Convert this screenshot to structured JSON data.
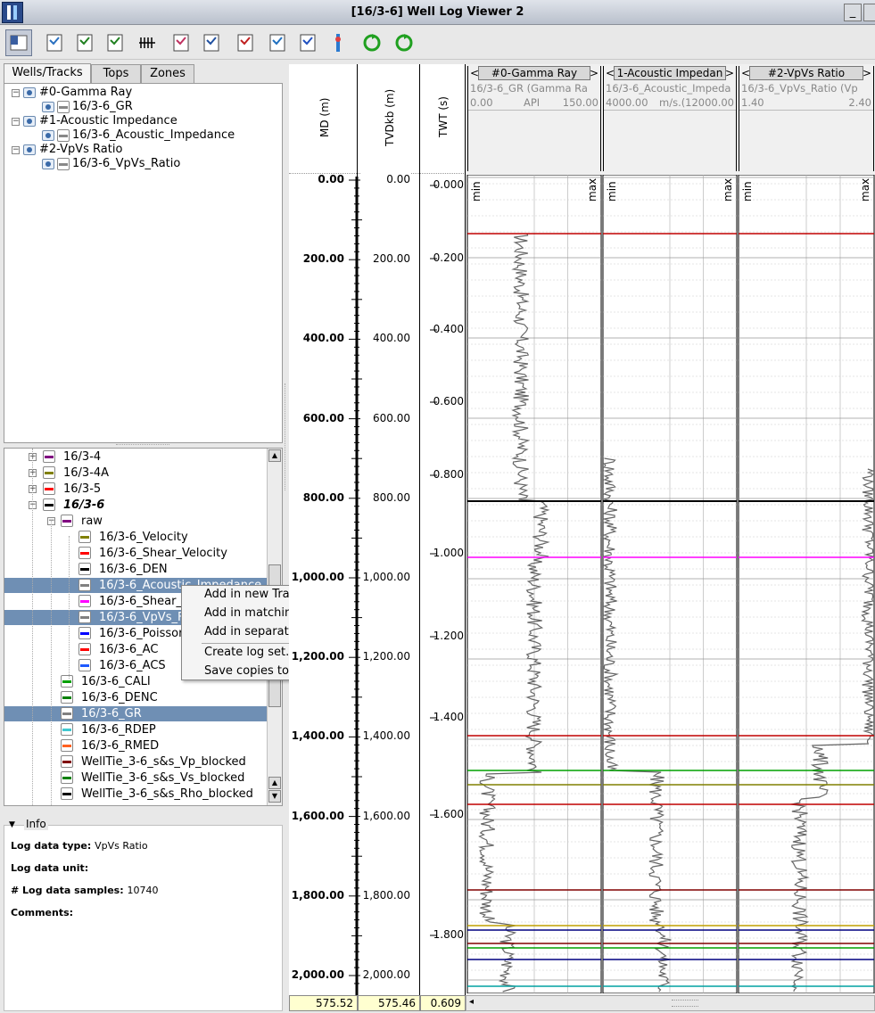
{
  "window": {
    "title": "[16/3-6] Well Log Viewer 2",
    "minimize": "_",
    "restore": "□"
  },
  "toolbar": {
    "icons": [
      "select-mode-icon",
      "new-track-icon",
      "check-log-icon",
      "check-all-icon",
      "depth-scale-icon",
      "track-layout-icon",
      "zone-marker-icon",
      "log-editor-icon",
      "crossplot-icon",
      "multi-track-icon",
      "well-tie-icon",
      "refresh-icon",
      "sync-icon"
    ]
  },
  "tabs": [
    "Wells/Tracks",
    "Tops",
    "Zones"
  ],
  "tracks_tree": [
    {
      "label": "#0-Gamma Ray",
      "child": "16/3-6_GR"
    },
    {
      "label": "#1-Acoustic Impedance",
      "child": "16/3-6_Acoustic_Impedance"
    },
    {
      "label": "#2-VpVs Ratio",
      "child": "16/3-6_VpVs_Ratio"
    }
  ],
  "log_tree": {
    "wells": [
      {
        "label": "16/3-4",
        "color": "#800080"
      },
      {
        "label": "16/3-4A",
        "color": "#808000"
      },
      {
        "label": "16/3-5",
        "color": "#ff0000"
      },
      {
        "label": "16/3-6",
        "color": "#000000"
      }
    ],
    "raw_label": "raw",
    "raw_color": "#800080",
    "raw_logs": [
      {
        "label": "16/3-6_Velocity",
        "color": "#808000"
      },
      {
        "label": "16/3-6_Shear_Velocity",
        "color": "#ff0000"
      },
      {
        "label": "16/3-6_DEN",
        "color": "#000000"
      },
      {
        "label": "16/3-6_Acoustic_Impedance",
        "color": "#808080"
      },
      {
        "label": "16/3-6_Shear_",
        "color": "#ff00ff"
      },
      {
        "label": "16/3-6_VpVs_F",
        "color": "#808080"
      },
      {
        "label": "16/3-6_Poissor",
        "color": "#0000ff"
      },
      {
        "label": "16/3-6_AC",
        "color": "#ff0000"
      },
      {
        "label": "16/3-6_ACS",
        "color": "#1e5aff"
      }
    ],
    "other_logs": [
      {
        "label": "16/3-6_CALI",
        "color": "#00a000"
      },
      {
        "label": "16/3-6_DENC",
        "color": "#008000"
      },
      {
        "label": "16/3-6_GR",
        "color": "#808080"
      },
      {
        "label": "16/3-6_RDEP",
        "color": "#40c8d0"
      },
      {
        "label": "16/3-6_RMED",
        "color": "#ff6020"
      },
      {
        "label": "WellTie_3-6_s&s_Vp_blocked",
        "color": "#800000"
      },
      {
        "label": "WellTie_3-6_s&s_Vs_blocked",
        "color": "#008000"
      },
      {
        "label": "WellTie_3-6_s&s_Rho_blocked",
        "color": "#000000"
      }
    ]
  },
  "context_menu": [
    "Add in new Track",
    "Add in matching Tracks",
    "Add in separate Tracks",
    "Create log set...",
    "Save copies to project..."
  ],
  "info": {
    "title": "Info",
    "type_label": "Log data type:",
    "type_value": "VpVs Ratio",
    "unit_label": "Log data unit:",
    "unit_value": "",
    "samples_label": "# Log data samples:",
    "samples_value": "10740",
    "comments_label": "Comments:",
    "comments_value": ""
  },
  "axes": {
    "md_label": "MD (m)",
    "tvd_label": "TVDkb (m)",
    "twt_label": "TWT (s)",
    "md_ticks": [
      "0.00",
      "200.00",
      "400.00",
      "600.00",
      "800.00",
      "1,000.00",
      "1,200.00",
      "1,400.00",
      "1,600.00",
      "1,800.00",
      "2,000.00"
    ],
    "tvd_ticks": [
      "0.00",
      "200.00",
      "400.00",
      "600.00",
      "800.00",
      "1,000.00",
      "1,200.00",
      "1,400.00",
      "1,600.00",
      "1,800.00",
      "2,000.00"
    ],
    "twt_ticks": [
      "0.000",
      "0.200",
      "0.400",
      "0.600",
      "0.800",
      "1.000",
      "1.200",
      "1.400",
      "1.600",
      "1.800"
    ]
  },
  "tracks": [
    {
      "title": "#0-Gamma Ray",
      "log": "16/3-6_GR (Gamma Ra",
      "min": "0.00",
      "unit": "API",
      "max": "150.00"
    },
    {
      "title": "1-Acoustic Impedan",
      "log": "16/3-6_Acoustic_Impeda",
      "min": "4000.00",
      "unit": "m/s.(",
      "max": "12000.00"
    },
    {
      "title": "#2-VpVs Ratio",
      "log": "16/3-6_VpVs_Ratio (Vp",
      "min": "1.40",
      "unit": "",
      "max": "2.40"
    }
  ],
  "minmax": {
    "min": "min",
    "max": "max"
  },
  "tops_colors": [
    "#c00000",
    "#000000",
    "#ff00ff",
    "#c00000",
    "#00a000",
    "#808000",
    "#c00000",
    "#800000",
    "#c0a000",
    "#000080",
    "#800000",
    "#00a000",
    "#000080",
    "#00a0a0"
  ],
  "readout": {
    "md": "575.52",
    "tvd": "575.46",
    "twt": "0.609"
  },
  "arrows": {
    "left": "<",
    "right": ">"
  }
}
